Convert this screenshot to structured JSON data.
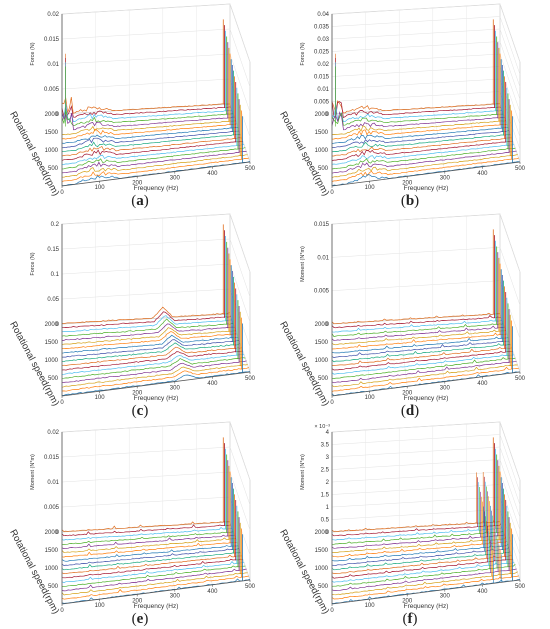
{
  "figure": {
    "panels": [
      {
        "id": "a",
        "caption": "a",
        "zlabel": "Force (N)",
        "zticks": [
          "0",
          "0.005",
          "0.01",
          "0.015",
          "0.02"
        ],
        "peak_pattern": "broad-low"
      },
      {
        "id": "b",
        "caption": "b",
        "zlabel": "Force (N)",
        "zticks": [
          "0",
          "0.005",
          "0.01",
          "0.015",
          "0.02",
          "0.025",
          "0.03",
          "0.035",
          "0.04"
        ],
        "peak_pattern": "broad-low"
      },
      {
        "id": "c",
        "caption": "c",
        "zlabel": "Force (N)",
        "zticks": [
          "0",
          "0.05",
          "0.1",
          "0.15",
          "0.2"
        ],
        "peak_pattern": "mid-peak"
      },
      {
        "id": "d",
        "caption": "d",
        "zlabel": "Moment (N*m)",
        "zticks": [
          "0",
          "0.005",
          "0.01",
          "0.015"
        ],
        "peak_pattern": "sparse"
      },
      {
        "id": "e",
        "caption": "e",
        "zlabel": "Moment (N*m)",
        "zticks": [
          "0",
          "0.005",
          "0.01",
          "0.015",
          "0.02"
        ],
        "peak_pattern": "sparse"
      },
      {
        "id": "f",
        "caption": "f",
        "zlabel": "Moment (N*m)",
        "zticks": [
          "0",
          "0.5",
          "1",
          "1.5",
          "2",
          "2.5",
          "3",
          "3.5",
          "4"
        ],
        "zexp": "× 10⁻³",
        "peak_pattern": "harmonics"
      }
    ]
  },
  "chart_data": [
    {
      "type": "line",
      "panel": "a",
      "xlabel": "Frequency (Hz)",
      "ylabel": "Rotational speed(rpm)",
      "zlabel": "Force (N)",
      "xticks": [
        0,
        100,
        200,
        300,
        400,
        500
      ],
      "yticks": [
        500,
        1000,
        1500,
        2000
      ],
      "zlim": [
        0,
        0.02
      ],
      "grid": true
    },
    {
      "type": "line",
      "panel": "b",
      "xlabel": "Frequency (Hz)",
      "ylabel": "Rotational speed(rpm)",
      "zlabel": "Force (N)",
      "xticks": [
        0,
        100,
        200,
        300,
        400,
        500
      ],
      "yticks": [
        500,
        1000,
        1500,
        2000
      ],
      "zlim": [
        0,
        0.04
      ],
      "grid": true
    },
    {
      "type": "line",
      "panel": "c",
      "xlabel": "Frequency (Hz)",
      "ylabel": "Rotational speed(rpm)",
      "zlabel": "Force (N)",
      "xticks": [
        0,
        100,
        200,
        300,
        400,
        500
      ],
      "yticks": [
        500,
        1000,
        1500,
        2000
      ],
      "zlim": [
        0,
        0.2
      ],
      "grid": true
    },
    {
      "type": "line",
      "panel": "d",
      "xlabel": "Frequency (Hz)",
      "ylabel": "Rotational speed(rpm)",
      "zlabel": "Moment (N*m)",
      "xticks": [
        0,
        100,
        200,
        300,
        400,
        500
      ],
      "yticks": [
        500,
        1000,
        1500,
        2000
      ],
      "zlim": [
        0,
        0.015
      ],
      "grid": true
    },
    {
      "type": "line",
      "panel": "e",
      "xlabel": "Frequency (Hz)",
      "ylabel": "Rotational speed(rpm)",
      "zlabel": "Moment (N*m)",
      "xticks": [
        0,
        100,
        200,
        300,
        400,
        500
      ],
      "yticks": [
        500,
        1000,
        1500,
        2000
      ],
      "zlim": [
        0,
        0.02
      ],
      "grid": true
    },
    {
      "type": "line",
      "panel": "f",
      "xlabel": "Frequency (Hz)",
      "ylabel": "Rotational speed(rpm)",
      "zlabel": "Moment (N*m)",
      "xticks": [
        0,
        100,
        200,
        300,
        400,
        500
      ],
      "yticks": [
        500,
        1000,
        1500,
        2000
      ],
      "zlim": [
        0,
        0.004
      ],
      "grid": true
    }
  ],
  "colors": {
    "series": [
      "#1f77b4",
      "#ff7f0e",
      "#d4a017",
      "#7e2f8e",
      "#4daf2a",
      "#4dbeee",
      "#a2142f",
      "#e06c1b",
      "#1aaa7f",
      "#3d4fa8"
    ],
    "axis": "#555555",
    "grid": "#cccccc"
  }
}
